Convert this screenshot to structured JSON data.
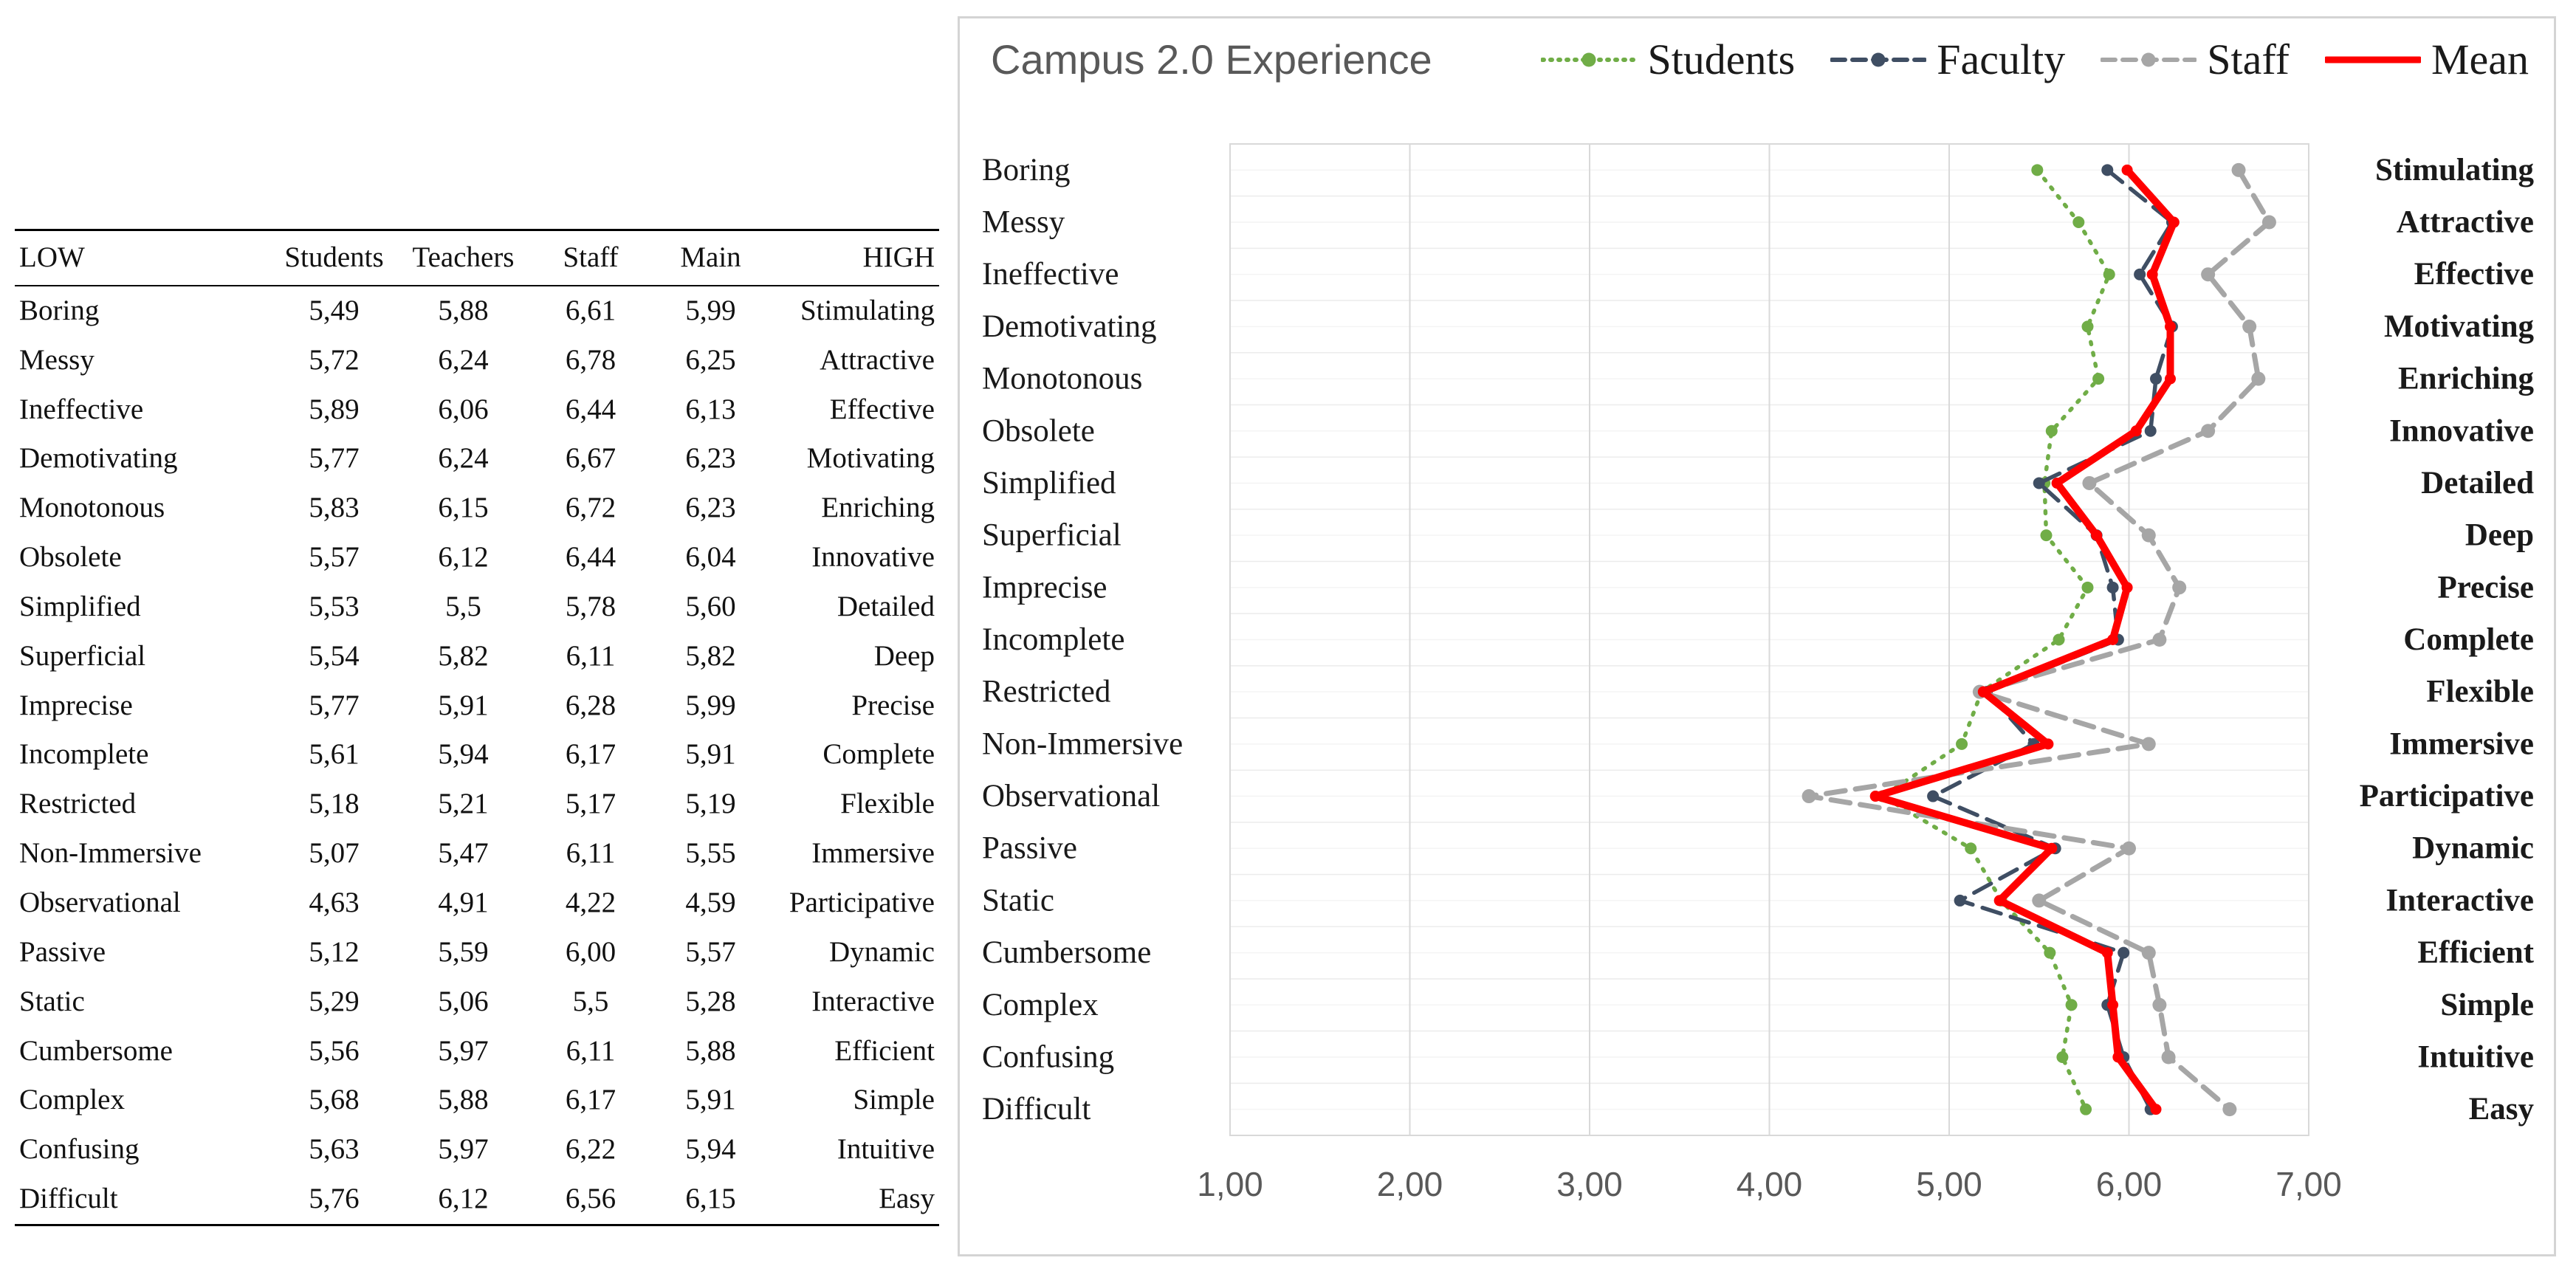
{
  "table": {
    "headers": [
      "LOW",
      "Students",
      "Teachers",
      "Staff",
      "Main",
      "HIGH"
    ],
    "rows": [
      [
        "Boring",
        "5,49",
        "5,88",
        "6,61",
        "5,99",
        "Stimulating"
      ],
      [
        "Messy",
        "5,72",
        "6,24",
        "6,78",
        "6,25",
        "Attractive"
      ],
      [
        "Ineffective",
        "5,89",
        "6,06",
        "6,44",
        "6,13",
        "Effective"
      ],
      [
        "Demotivating",
        "5,77",
        "6,24",
        "6,67",
        "6,23",
        "Motivating"
      ],
      [
        "Monotonous",
        "5,83",
        "6,15",
        "6,72",
        "6,23",
        "Enriching"
      ],
      [
        "Obsolete",
        "5,57",
        "6,12",
        "6,44",
        "6,04",
        "Innovative"
      ],
      [
        "Simplified",
        "5,53",
        "5,5",
        "5,78",
        "5,60",
        "Detailed"
      ],
      [
        "Superficial",
        "5,54",
        "5,82",
        "6,11",
        "5,82",
        "Deep"
      ],
      [
        "Imprecise",
        "5,77",
        "5,91",
        "6,28",
        "5,99",
        "Precise"
      ],
      [
        "Incomplete",
        "5,61",
        "5,94",
        "6,17",
        "5,91",
        "Complete"
      ],
      [
        "Restricted",
        "5,18",
        "5,21",
        "5,17",
        "5,19",
        "Flexible"
      ],
      [
        "Non-Immersive",
        "5,07",
        "5,47",
        "6,11",
        "5,55",
        "Immersive"
      ],
      [
        "Observational",
        "4,63",
        "4,91",
        "4,22",
        "4,59",
        "Participative"
      ],
      [
        "Passive",
        "5,12",
        "5,59",
        "6,00",
        "5,57",
        "Dynamic"
      ],
      [
        "Static",
        "5,29",
        "5,06",
        "5,5",
        "5,28",
        "Interactive"
      ],
      [
        "Cumbersome",
        "5,56",
        "5,97",
        "6,11",
        "5,88",
        "Efficient"
      ],
      [
        "Complex",
        "5,68",
        "5,88",
        "6,17",
        "5,91",
        "Simple"
      ],
      [
        "Confusing",
        "5,63",
        "5,97",
        "6,22",
        "5,94",
        "Intuitive"
      ],
      [
        "Difficult",
        "5,76",
        "6,12",
        "6,56",
        "6,15",
        "Easy"
      ]
    ]
  },
  "chart": {
    "title": "Campus 2.0 Experience"
  },
  "chart_data": {
    "type": "line",
    "title": "Campus 2.0 Experience",
    "orientation": "horizontal-values-vertical-categories",
    "xlim": [
      1,
      7
    ],
    "x_ticks": [
      "1,00",
      "2,00",
      "3,00",
      "4,00",
      "5,00",
      "6,00",
      "7,00"
    ],
    "grid": true,
    "legend_position": "top-right",
    "categories_left": [
      "Boring",
      "Messy",
      "Ineffective",
      "Demotivating",
      "Monotonous",
      "Obsolete",
      "Simplified",
      "Superficial",
      "Imprecise",
      "Incomplete",
      "Restricted",
      "Non-Immersive",
      "Observational",
      "Passive",
      "Static",
      "Cumbersome",
      "Complex",
      "Confusing",
      "Difficult"
    ],
    "categories_right": [
      "Stimulating",
      "Attractive",
      "Effective",
      "Motivating",
      "Enriching",
      "Innovative",
      "Detailed",
      "Deep",
      "Precise",
      "Complete",
      "Flexible",
      "Immersive",
      "Participative",
      "Dynamic",
      "Interactive",
      "Efficient",
      "Simple",
      "Intuitive",
      "Easy"
    ],
    "series": [
      {
        "name": "Students",
        "color": "#70AD47",
        "style": "dotted",
        "values": [
          5.49,
          5.72,
          5.89,
          5.77,
          5.83,
          5.57,
          5.53,
          5.54,
          5.77,
          5.61,
          5.18,
          5.07,
          4.63,
          5.12,
          5.29,
          5.56,
          5.68,
          5.63,
          5.76
        ]
      },
      {
        "name": "Faculty",
        "color": "#3F4E63",
        "style": "dashed",
        "values": [
          5.88,
          6.24,
          6.06,
          6.24,
          6.15,
          6.12,
          5.5,
          5.82,
          5.91,
          5.94,
          5.21,
          5.47,
          4.91,
          5.59,
          5.06,
          5.97,
          5.88,
          5.97,
          6.12
        ]
      },
      {
        "name": "Staff",
        "color": "#A6A6A6",
        "style": "dashed",
        "values": [
          6.61,
          6.78,
          6.44,
          6.67,
          6.72,
          6.44,
          5.78,
          6.11,
          6.28,
          6.17,
          5.17,
          6.11,
          4.22,
          6.0,
          5.5,
          6.11,
          6.17,
          6.22,
          6.56
        ]
      },
      {
        "name": "Mean",
        "color": "#FF0000",
        "style": "solid",
        "values": [
          5.99,
          6.25,
          6.13,
          6.23,
          6.23,
          6.04,
          5.6,
          5.82,
          5.99,
          5.91,
          5.19,
          5.55,
          4.59,
          5.57,
          5.28,
          5.88,
          5.91,
          5.94,
          6.15
        ]
      }
    ]
  }
}
